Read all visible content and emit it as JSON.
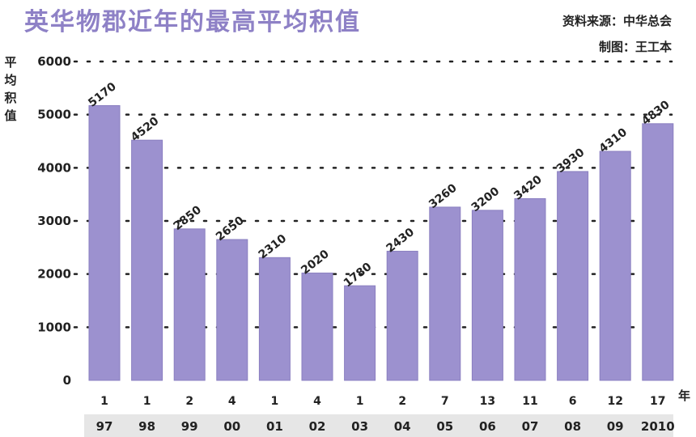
{
  "header": {
    "title": "英华物郡近年的最高平均积值",
    "source_line1": "资料来源：中华总会",
    "source_line2": "制图：王工本"
  },
  "ylabel": "平均积值",
  "xunit": "年",
  "colors": {
    "bar": "#9c91cf",
    "bar_stroke": "#8a7fc0",
    "grid": "#222222",
    "title": "#8e81c6"
  },
  "chart_data": {
    "type": "bar",
    "title": "英华物郡近年的最高平均积值",
    "ylabel": "平均积值",
    "xlabel": "年",
    "ylim": [
      0,
      6000
    ],
    "yticks": [
      0,
      1000,
      2000,
      3000,
      4000,
      5000,
      6000
    ],
    "grid": true,
    "categories": [
      "97",
      "98",
      "99",
      "00",
      "01",
      "02",
      "03",
      "04",
      "05",
      "06",
      "07",
      "08",
      "09",
      "2010"
    ],
    "rank_labels": [
      "1",
      "1",
      "2",
      "4",
      "1",
      "4",
      "1",
      "2",
      "7",
      "13",
      "11",
      "6",
      "12",
      "17"
    ],
    "values": [
      5170,
      4520,
      2850,
      2650,
      2310,
      2020,
      1780,
      2430,
      3260,
      3200,
      3420,
      3930,
      4310,
      4830
    ],
    "value_labels": [
      "5170",
      "4520",
      "2850",
      "2650",
      "2310",
      "2020",
      "1780",
      "2430",
      "3260",
      "3200",
      "3420",
      "3930",
      "4310",
      "4830"
    ]
  }
}
